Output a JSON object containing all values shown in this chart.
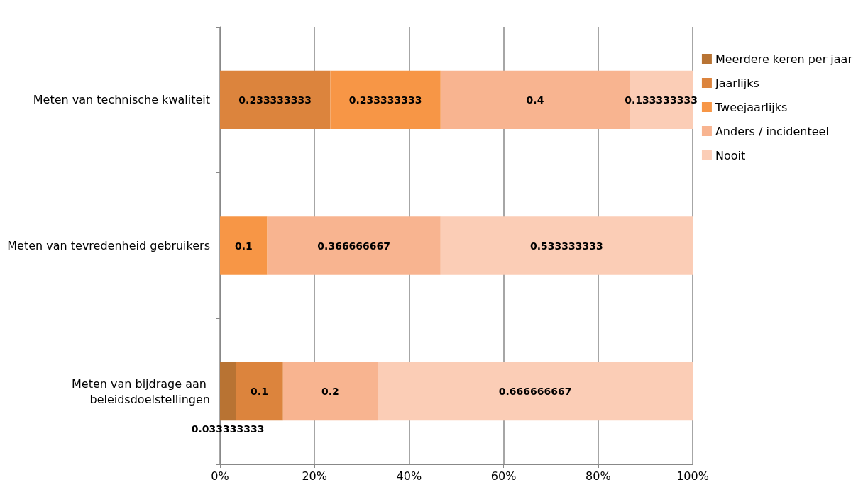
{
  "chart_data": {
    "type": "bar",
    "orientation": "horizontal",
    "stacked": true,
    "data_labels": true,
    "grid": "x",
    "legend": "right",
    "categories": [
      "Meten van technische kwaliteit",
      "Meten van tevredenheid gebruikers",
      "Meten van bijdrage aan beleidsdoelstellingen"
    ],
    "xlim": [
      0,
      1
    ],
    "xticks": [
      {
        "value": 0,
        "label": "0%"
      },
      {
        "value": 0.2,
        "label": "20%"
      },
      {
        "value": 0.4,
        "label": "40%"
      },
      {
        "value": 0.6,
        "label": "60%"
      },
      {
        "value": 0.8,
        "label": "80%"
      },
      {
        "value": 1,
        "label": "100%"
      }
    ],
    "series": [
      {
        "name": "Meerdere keren per jaar",
        "color": "#b87333",
        "values": [
          null,
          null,
          0.033333333
        ]
      },
      {
        "name": "Jaarlijks",
        "color": "#dc843d",
        "values": [
          0.233333333,
          null,
          0.1
        ]
      },
      {
        "name": "Tweejaarlijks",
        "color": "#f79646",
        "values": [
          0.233333333,
          0.1,
          null
        ]
      },
      {
        "name": "Anders / incidenteel",
        "color": "#f8b490",
        "values": [
          0.4,
          0.366666667,
          0.2
        ]
      },
      {
        "name": "Nooit",
        "color": "#fbcdb6",
        "values": [
          0.133333333,
          0.533333333,
          0.666666667
        ]
      }
    ]
  }
}
